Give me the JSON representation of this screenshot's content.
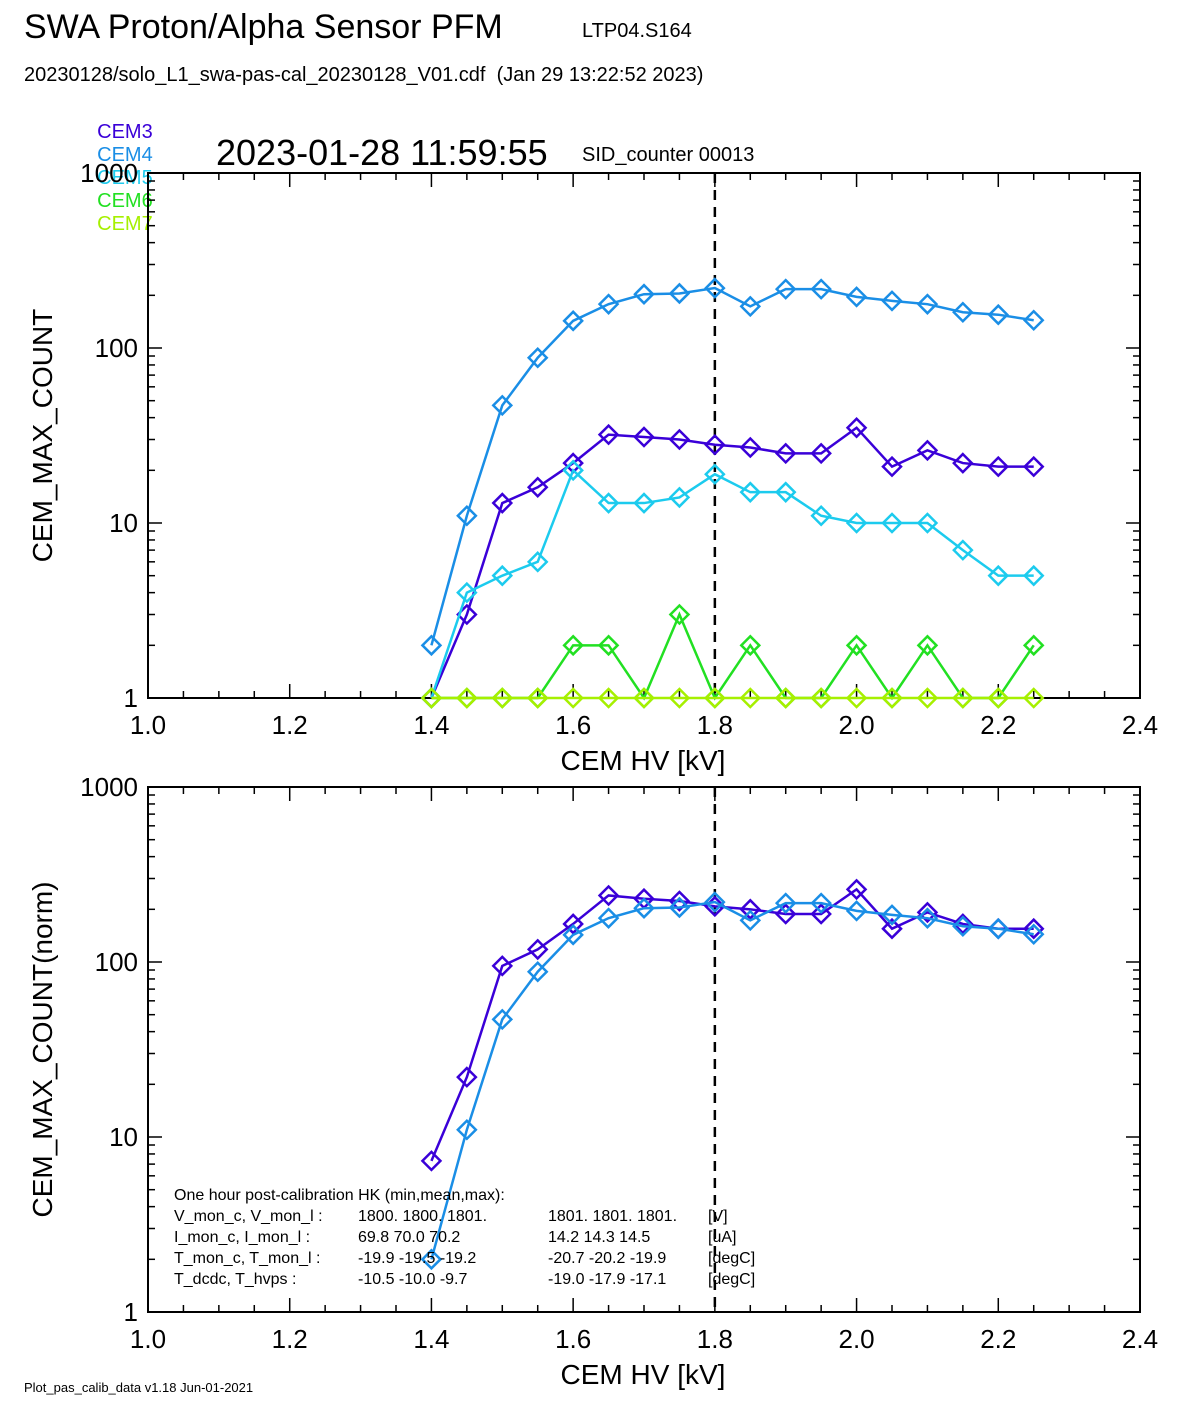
{
  "header": {
    "title": "SWA Proton/Alpha Sensor PFM",
    "subtitle": "LTP04.S164",
    "file_line": "20230128/solo_L1_swa-pas-cal_20230128_V01.cdf  (Jan 29 13:22:52 2023)",
    "timestamp": "2023-01-28 11:59:55",
    "sid": "SID_counter 00013"
  },
  "footer": "Plot_pas_calib_data v1.18 Jun-01-2021",
  "colors": {
    "CEM3": "#3a00d8",
    "CEM4": "#1a8ee6",
    "CEM5": "#1ccbee",
    "CEM6": "#22e022",
    "CEM7": "#a6f000"
  },
  "chart_data": [
    {
      "type": "line",
      "xlabel": "CEM HV [kV]",
      "ylabel": "CEM_MAX_COUNT",
      "yscale": "log",
      "xlim": [
        1.0,
        2.4
      ],
      "ylim": [
        1,
        1000
      ],
      "xticks": [
        "1.0",
        "1.2",
        "1.4",
        "1.6",
        "1.8",
        "2.0",
        "2.2",
        "2.4"
      ],
      "yticks": [
        "1",
        "10",
        "100",
        "1000"
      ],
      "vline_x": 1.8,
      "x": [
        1.4,
        1.45,
        1.5,
        1.55,
        1.6,
        1.65,
        1.7,
        1.75,
        1.8,
        1.85,
        1.9,
        1.95,
        2.0,
        2.05,
        2.1,
        2.15,
        2.2,
        2.25
      ],
      "series": [
        {
          "name": "CEM3",
          "values": [
            1,
            3,
            13,
            16,
            22,
            32,
            31,
            30,
            28,
            27,
            25,
            25,
            35,
            21,
            26,
            22,
            21,
            21
          ]
        },
        {
          "name": "CEM4",
          "values": [
            2,
            11,
            47,
            88,
            143,
            178,
            203,
            205,
            220,
            173,
            217,
            217,
            196,
            186,
            178,
            160,
            155,
            144
          ]
        },
        {
          "name": "CEM5",
          "values": [
            1,
            4,
            5,
            6,
            20,
            13,
            13,
            14,
            19,
            15,
            15,
            11,
            10,
            10,
            10,
            7,
            5,
            5
          ]
        },
        {
          "name": "CEM6",
          "values": [
            1,
            1,
            1,
            1,
            2,
            2,
            1,
            3,
            1,
            2,
            1,
            1,
            2,
            1,
            2,
            1,
            1,
            2
          ]
        },
        {
          "name": "CEM7",
          "values": [
            1,
            1,
            1,
            1,
            1,
            1,
            1,
            1,
            1,
            1,
            1,
            1,
            1,
            1,
            1,
            1,
            1,
            1
          ]
        }
      ]
    },
    {
      "type": "line",
      "xlabel": "CEM HV [kV]",
      "ylabel": "CEM_MAX_COUNT(norm)",
      "yscale": "log",
      "xlim": [
        1.0,
        2.4
      ],
      "ylim": [
        1,
        1000
      ],
      "xticks": [
        "1.0",
        "1.2",
        "1.4",
        "1.6",
        "1.8",
        "2.0",
        "2.2",
        "2.4"
      ],
      "yticks": [
        "1",
        "10",
        "100",
        "1000"
      ],
      "vline_x": 1.8,
      "x": [
        1.4,
        1.45,
        1.5,
        1.55,
        1.6,
        1.65,
        1.7,
        1.75,
        1.8,
        1.85,
        1.9,
        1.95,
        2.0,
        2.05,
        2.1,
        2.15,
        2.2,
        2.25
      ],
      "series": [
        {
          "name": "CEM3",
          "values": [
            7.3,
            22,
            95,
            118,
            165,
            240,
            230,
            223,
            208,
            200,
            188,
            188,
            260,
            155,
            192,
            165,
            155,
            155
          ]
        },
        {
          "name": "CEM4",
          "values": [
            2,
            11,
            47,
            88,
            143,
            178,
            203,
            205,
            220,
            173,
            217,
            217,
            196,
            186,
            178,
            160,
            155,
            144
          ]
        }
      ],
      "annotation": {
        "heading": "One hour post-calibration HK (min,mean,max):",
        "rows": [
          {
            "label": "V_mon_c, V_mon_l :",
            "c": "1800.  1800.  1801.",
            "l": "1801.  1801.  1801.",
            "unit": "[V]"
          },
          {
            "label": "I_mon_c,  I_mon_l :",
            "c": "69.8   70.0   70.2",
            "l": "14.2   14.3   14.5",
            "unit": "[uA]"
          },
          {
            "label": "T_mon_c, T_mon_l :",
            "c": "-19.9  -19.5  -19.2",
            "l": "-20.7  -20.2  -19.9",
            "unit": "[degC]"
          },
          {
            "label": "T_dcdc,    T_hvps :",
            "c": "-10.5  -10.0   -9.7",
            "l": "-19.0  -17.9  -17.1",
            "unit": "[degC]"
          }
        ]
      }
    }
  ]
}
